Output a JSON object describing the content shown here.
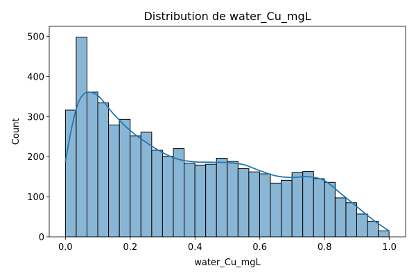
{
  "chart_data": {
    "type": "bar",
    "subtype": "histogram_with_kde",
    "title": "Distribution de water_Cu_mgL",
    "xlabel": "water_Cu_mgL",
    "ylabel": "Count",
    "xlim": [
      -0.05,
      1.05
    ],
    "ylim": [
      0,
      525
    ],
    "x_ticks": [
      0.0,
      0.2,
      0.4,
      0.6,
      0.8,
      1.0
    ],
    "x_tick_labels": [
      "0.0",
      "0.2",
      "0.4",
      "0.6",
      "0.8",
      "1.0"
    ],
    "y_ticks": [
      0,
      100,
      200,
      300,
      400,
      500
    ],
    "y_tick_labels": [
      "0",
      "100",
      "200",
      "300",
      "400",
      "500"
    ],
    "grid": false,
    "legend": "none",
    "bin_start": 0.0,
    "bin_width": 0.0333,
    "values": [
      316,
      498,
      361,
      334,
      279,
      293,
      252,
      261,
      216,
      201,
      220,
      184,
      179,
      181,
      196,
      188,
      170,
      162,
      157,
      134,
      141,
      160,
      163,
      145,
      136,
      97,
      85,
      57,
      39,
      15
    ],
    "kde": {
      "x": [
        0.0,
        0.02,
        0.04,
        0.06,
        0.08,
        0.1,
        0.12,
        0.15,
        0.2,
        0.25,
        0.3,
        0.35,
        0.4,
        0.45,
        0.5,
        0.55,
        0.6,
        0.65,
        0.7,
        0.75,
        0.8,
        0.85,
        0.9,
        0.95,
        1.0
      ],
      "y": [
        188,
        275,
        335,
        358,
        360,
        352,
        335,
        305,
        265,
        235,
        210,
        193,
        187,
        186,
        185,
        180,
        165,
        152,
        148,
        150,
        140,
        108,
        75,
        42,
        14
      ]
    },
    "colors": {
      "bar_fill": "#8ab6d6",
      "bar_edge": "#000000",
      "kde_line": "#1f77b4"
    }
  }
}
